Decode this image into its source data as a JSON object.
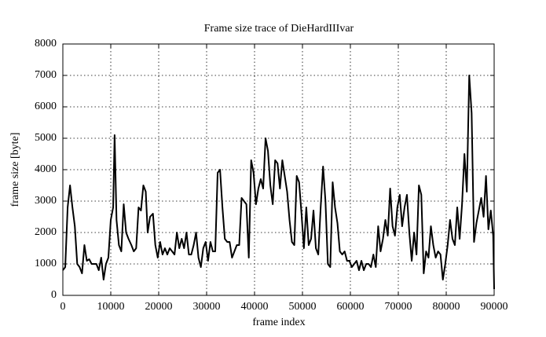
{
  "chart_data": {
    "type": "line",
    "title": "Frame size trace of DieHardIIIvar",
    "xlabel": "frame index",
    "ylabel": "frame size [byte]",
    "x": [
      0,
      500,
      1000,
      1500,
      2000,
      2500,
      3000,
      3500,
      4000,
      4500,
      5000,
      5500,
      6000,
      7000,
      7500,
      8000,
      8500,
      9000,
      9500,
      10000,
      10500,
      10800,
      11200,
      11700,
      12200,
      12700,
      13200,
      13700,
      14300,
      14800,
      15300,
      15800,
      16300,
      16800,
      17300,
      17700,
      18200,
      18800,
      19300,
      19800,
      20300,
      20800,
      21300,
      21800,
      22300,
      22800,
      23300,
      23800,
      24300,
      24800,
      25300,
      25800,
      26300,
      26800,
      27300,
      27800,
      28300,
      28800,
      29300,
      29800,
      30300,
      30800,
      31300,
      31800,
      32300,
      32800,
      33300,
      33800,
      34300,
      34800,
      35300,
      35800,
      36300,
      36800,
      37300,
      37800,
      38300,
      38800,
      39300,
      39800,
      40300,
      40800,
      41300,
      41800,
      42300,
      42800,
      43300,
      43800,
      44300,
      44800,
      45300,
      45800,
      46300,
      46800,
      47300,
      47800,
      48300,
      48800,
      49300,
      49800,
      50300,
      50800,
      51300,
      51800,
      52300,
      52800,
      53300,
      53800,
      54300,
      54800,
      55300,
      55800,
      56300,
      56800,
      57300,
      57800,
      58300,
      58800,
      59300,
      59800,
      60300,
      60800,
      61300,
      61800,
      62300,
      62800,
      63300,
      63800,
      64300,
      64800,
      65300,
      65800,
      66300,
      66800,
      67300,
      67800,
      68300,
      68800,
      69300,
      69800,
      70300,
      70800,
      71300,
      71800,
      72300,
      72800,
      73300,
      73800,
      74300,
      74800,
      75300,
      75800,
      76300,
      76800,
      77300,
      77800,
      78300,
      78800,
      79300,
      79800,
      80300,
      80800,
      81300,
      81800,
      82300,
      82800,
      83300,
      83800,
      84300,
      84800,
      85300,
      85800,
      86300,
      86800,
      87300,
      87800,
      88300,
      88800,
      89300,
      89800,
      90000
    ],
    "series": [
      {
        "color": "#000000",
        "values": [
          800,
          900,
          2800,
          3500,
          2800,
          2200,
          1000,
          900,
          700,
          1600,
          1100,
          1150,
          1000,
          1000,
          800,
          1200,
          500,
          1000,
          1200,
          2400,
          2800,
          5100,
          2400,
          1600,
          1400,
          2900,
          2000,
          1800,
          1600,
          1400,
          1500,
          2800,
          2700,
          3500,
          3300,
          2000,
          2500,
          2600,
          1600,
          1200,
          1700,
          1300,
          1500,
          1300,
          1500,
          1400,
          1300,
          2000,
          1500,
          1800,
          1500,
          2000,
          1300,
          1300,
          1600,
          2000,
          1200,
          900,
          1500,
          1700,
          1100,
          1700,
          1400,
          1400,
          3900,
          4000,
          2800,
          1800,
          1700,
          1700,
          1200,
          1400,
          1600,
          1600,
          3100,
          3000,
          2900,
          1200,
          4300,
          3900,
          2900,
          3400,
          3700,
          3400,
          5000,
          4600,
          3500,
          2900,
          4300,
          4200,
          3400,
          4300,
          3800,
          3300,
          2400,
          1700,
          1600,
          3800,
          3600,
          2600,
          1500,
          2800,
          1600,
          1800,
          2700,
          1500,
          1300,
          2800,
          4100,
          3000,
          1000,
          900,
          3600,
          2800,
          2300,
          1400,
          1300,
          1400,
          1100,
          1100,
          900,
          1000,
          1100,
          800,
          1100,
          800,
          1000,
          1000,
          900,
          1300,
          900,
          2200,
          1400,
          1800,
          2400,
          1900,
          3400,
          2200,
          1900,
          2800,
          3200,
          2200,
          2800,
          3200,
          2000,
          1100,
          2000,
          1300,
          3500,
          3200,
          700,
          1400,
          1200,
          2200,
          1600,
          1200,
          1400,
          1300,
          500,
          1000,
          1600,
          2400,
          1800,
          1600,
          2800,
          1800,
          2900,
          4500,
          3300,
          7000,
          5800,
          1700,
          2300,
          2700,
          3100,
          2500,
          3800,
          2100,
          2700,
          1900,
          200
        ]
      }
    ],
    "xlim": [
      0,
      90000
    ],
    "ylim": [
      0,
      8000
    ],
    "xticks": [
      0,
      10000,
      20000,
      30000,
      40000,
      50000,
      60000,
      70000,
      80000,
      90000
    ],
    "yticks": [
      0,
      1000,
      2000,
      3000,
      4000,
      5000,
      6000,
      7000,
      8000
    ],
    "grid": true
  }
}
